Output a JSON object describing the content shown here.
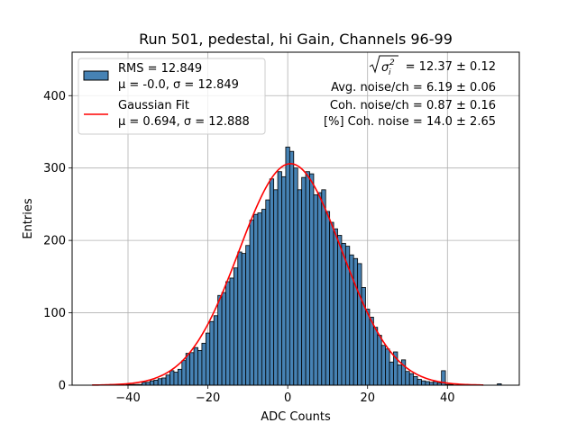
{
  "chart_data": {
    "type": "bar",
    "title": "Run 501, pedestal, hi Gain, Channels 96-99",
    "xlabel": "ADC Counts",
    "ylabel": "Entries",
    "xlim": [
      -54,
      58
    ],
    "ylim": [
      0,
      460
    ],
    "xticks": [
      -40,
      -20,
      0,
      20,
      40
    ],
    "yticks": [
      0,
      100,
      200,
      300,
      400
    ],
    "grid": true,
    "legend_placement": "top-left",
    "colors": {
      "bars": "#4682b4",
      "bar_edge": "#000000",
      "fit": "#ff0000",
      "grid": "#b0b0b0"
    },
    "histogram": {
      "name_lines": [
        "RMS = 12.849",
        "μ = -0.0, σ = 12.849"
      ],
      "bin_width": 1,
      "bins": [
        [
          -44,
          1
        ],
        [
          -43,
          0
        ],
        [
          -42,
          0
        ],
        [
          -41,
          0
        ],
        [
          -40,
          1
        ],
        [
          -39,
          1
        ],
        [
          -38,
          1
        ],
        [
          -37,
          1
        ],
        [
          -36,
          4
        ],
        [
          -35,
          4
        ],
        [
          -34,
          6
        ],
        [
          -33,
          7
        ],
        [
          -32,
          9
        ],
        [
          -31,
          10
        ],
        [
          -30,
          14
        ],
        [
          -29,
          20
        ],
        [
          -28,
          18
        ],
        [
          -27,
          22
        ],
        [
          -26,
          34
        ],
        [
          -25,
          44
        ],
        [
          -24,
          45
        ],
        [
          -23,
          52
        ],
        [
          -22,
          48
        ],
        [
          -21,
          58
        ],
        [
          -20,
          72
        ],
        [
          -19,
          88
        ],
        [
          -18,
          96
        ],
        [
          -17,
          124
        ],
        [
          -16,
          128
        ],
        [
          -15,
          143
        ],
        [
          -14,
          148
        ],
        [
          -13,
          162
        ],
        [
          -12,
          184
        ],
        [
          -11,
          182
        ],
        [
          -10,
          193
        ],
        [
          -9,
          228
        ],
        [
          -8,
          236
        ],
        [
          -7,
          238
        ],
        [
          -6,
          243
        ],
        [
          -5,
          256
        ],
        [
          -4,
          285
        ],
        [
          -3,
          270
        ],
        [
          -2,
          295
        ],
        [
          -1,
          288
        ],
        [
          0,
          329
        ],
        [
          1,
          323
        ],
        [
          2,
          300
        ],
        [
          3,
          270
        ],
        [
          4,
          287
        ],
        [
          5,
          295
        ],
        [
          6,
          292
        ],
        [
          7,
          263
        ],
        [
          8,
          266
        ],
        [
          9,
          270
        ],
        [
          10,
          240
        ],
        [
          11,
          225
        ],
        [
          12,
          216
        ],
        [
          13,
          207
        ],
        [
          14,
          196
        ],
        [
          15,
          192
        ],
        [
          16,
          180
        ],
        [
          17,
          175
        ],
        [
          18,
          168
        ],
        [
          19,
          135
        ],
        [
          20,
          105
        ],
        [
          21,
          94
        ],
        [
          22,
          80
        ],
        [
          23,
          69
        ],
        [
          24,
          55
        ],
        [
          25,
          50
        ],
        [
          26,
          32
        ],
        [
          27,
          46
        ],
        [
          28,
          28
        ],
        [
          29,
          35
        ],
        [
          30,
          19
        ],
        [
          31,
          16
        ],
        [
          32,
          12
        ],
        [
          33,
          8
        ],
        [
          34,
          6
        ],
        [
          35,
          5
        ],
        [
          36,
          4
        ],
        [
          37,
          5
        ],
        [
          38,
          3
        ],
        [
          39,
          20
        ],
        [
          40,
          1
        ],
        [
          41,
          1
        ],
        [
          42,
          0
        ],
        [
          43,
          0
        ],
        [
          44,
          0
        ],
        [
          45,
          0
        ],
        [
          46,
          0
        ],
        [
          47,
          0
        ],
        [
          48,
          0
        ],
        [
          49,
          0
        ],
        [
          50,
          0
        ],
        [
          51,
          0
        ],
        [
          52,
          0
        ],
        [
          53,
          2
        ]
      ]
    },
    "fit": {
      "type": "gaussian",
      "name_lines": [
        "Gaussian Fit",
        "μ = 0.694, σ = 12.888"
      ],
      "mu": 0.694,
      "sigma": 12.888,
      "amplitude": 306,
      "x_range": [
        -49,
        49
      ]
    },
    "annotations": {
      "sigma_prefix": "",
      "sigma_value": " = 12.37 ± 0.12",
      "avg_noise": "Avg. noise/ch = 6.19 ± 0.06",
      "coh_noise": "Coh. noise/ch = 0.87 ± 0.16",
      "coh_percent": "[%] Coh. noise = 14.0 ± 2.65"
    }
  }
}
